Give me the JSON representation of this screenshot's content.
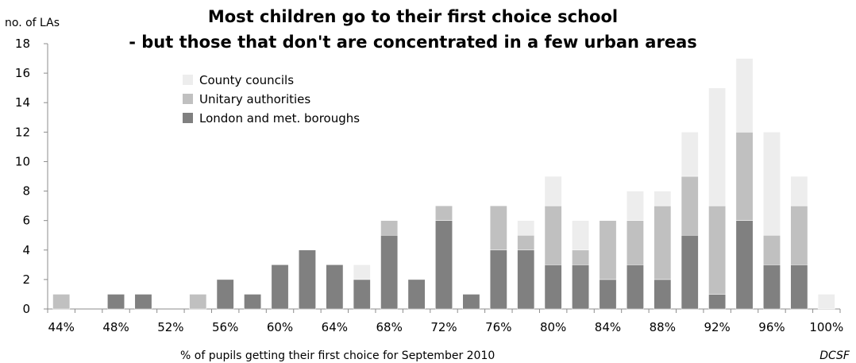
{
  "chart_data": {
    "type": "bar",
    "stacked": true,
    "title": "Most children go to their first choice school",
    "subtitle": "- but those that don't are concentrated in a few urban areas",
    "ylabel": "no. of LAs",
    "xlabel": "% of pupils getting their first choice for September 2010",
    "source": "DCSF",
    "ylim": [
      0,
      18
    ],
    "yticks": [
      0,
      2,
      4,
      6,
      8,
      10,
      12,
      14,
      16,
      18
    ],
    "xticks": [
      "44%",
      "48%",
      "52%",
      "56%",
      "60%",
      "64%",
      "68%",
      "72%",
      "76%",
      "80%",
      "84%",
      "88%",
      "92%",
      "96%",
      "100%"
    ],
    "categories": [
      "44%",
      "46%",
      "48%",
      "50%",
      "52%",
      "54%",
      "56%",
      "58%",
      "60%",
      "62%",
      "64%",
      "66%",
      "68%",
      "70%",
      "72%",
      "74%",
      "76%",
      "78%",
      "80%",
      "82%",
      "84%",
      "86%",
      "88%",
      "90%",
      "92%",
      "94%",
      "96%",
      "98%",
      "100%"
    ],
    "series": [
      {
        "name": "London and met. boroughs",
        "color": "#808080",
        "values": [
          0,
          0,
          1,
          1,
          0,
          0,
          2,
          1,
          3,
          4,
          3,
          2,
          5,
          2,
          6,
          1,
          4,
          4,
          3,
          3,
          2,
          3,
          2,
          5,
          1,
          6,
          3,
          3,
          0
        ]
      },
      {
        "name": "Unitary authorities",
        "color": "#c0c0c0",
        "values": [
          1,
          0,
          0,
          0,
          0,
          1,
          0,
          0,
          0,
          0,
          0,
          0,
          1,
          0,
          1,
          0,
          3,
          1,
          4,
          1,
          4,
          3,
          5,
          4,
          6,
          6,
          2,
          4,
          0
        ]
      },
      {
        "name": "County councils",
        "color": "#ededed",
        "values": [
          0,
          0,
          0,
          0,
          0,
          0,
          0,
          0,
          0,
          0,
          0,
          1,
          0,
          0,
          0,
          0,
          0,
          1,
          2,
          2,
          0,
          2,
          1,
          3,
          8,
          5,
          7,
          2,
          1
        ]
      }
    ],
    "legend": {
      "position": "top-left",
      "order": [
        "County councils",
        "Unitary authorities",
        "London and met. boroughs"
      ]
    },
    "grid": false
  }
}
